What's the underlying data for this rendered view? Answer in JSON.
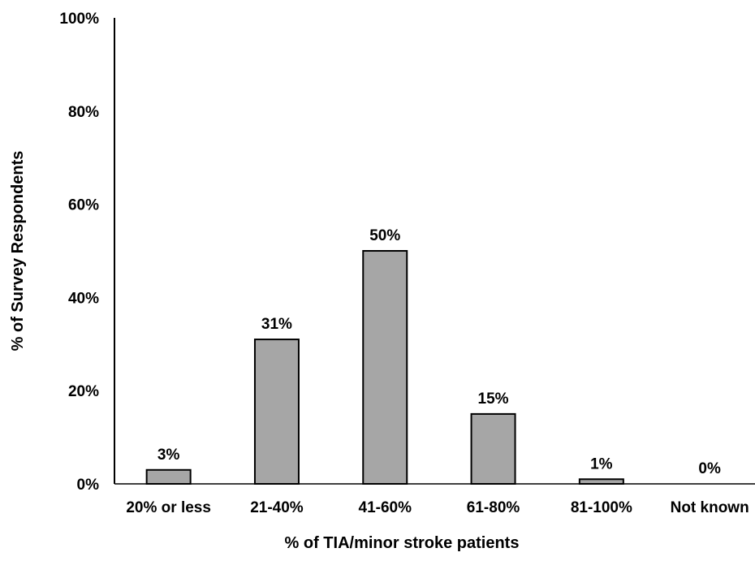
{
  "chart_data": {
    "type": "bar",
    "title": "",
    "xlabel": "% of TIA/minor stroke patients",
    "ylabel": "% of Survey Respondents",
    "ylim": [
      0,
      100
    ],
    "yticks": [
      "0%",
      "20%",
      "40%",
      "60%",
      "80%",
      "100%"
    ],
    "ytick_values": [
      0,
      20,
      40,
      60,
      80,
      100
    ],
    "categories": [
      "20% or less",
      "21-40%",
      "41-60%",
      "61-80%",
      "81-100%",
      "Not known"
    ],
    "values": [
      3,
      31,
      50,
      15,
      1,
      0
    ],
    "data_labels": [
      "3%",
      "31%",
      "50%",
      "15%",
      "1%",
      "0%"
    ],
    "grid": false,
    "legend": "none",
    "colors": {
      "bar_fill": "#a6a6a6",
      "bar_stroke": "#000000",
      "axis": "#000000",
      "text": "#000000"
    }
  }
}
